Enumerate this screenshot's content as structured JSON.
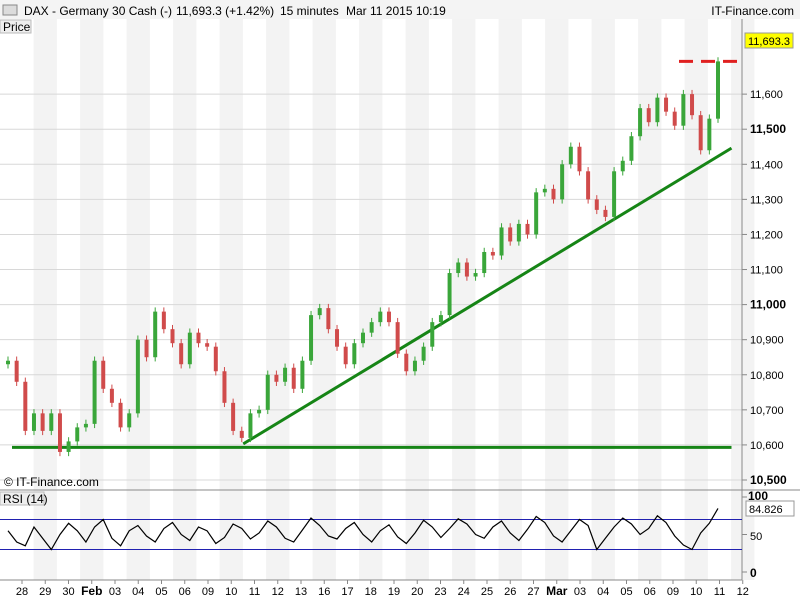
{
  "header": {
    "title": "DAX - Germany 30 Cash (-)",
    "last_price": "11,693.3 (+1.42%)",
    "interval": "15 minutes",
    "timestamp": "Mar 11 2015 10:19",
    "brand": "IT-Finance.com"
  },
  "main_panel": {
    "tab_label": "Price",
    "copyright": "© IT-Finance.com",
    "current_value_label": "11,693.3"
  },
  "rsi_panel": {
    "label": "RSI (14)",
    "value_label": "84.826",
    "axis_labels": [
      "100",
      "50",
      "0"
    ]
  },
  "colors": {
    "up_candle": "#3aa63a",
    "down_candle": "#d04b4b",
    "trendline": "#168516",
    "target_line": "#e02020",
    "rsi_band": "#2020b0",
    "weekend_band": "#e9e9e9"
  },
  "chart_data": [
    {
      "type": "line",
      "subtype": "candlestick",
      "title": "DAX - Germany 30 Cash (-)",
      "ylabel": "Price",
      "ylim": [
        10500,
        11760
      ],
      "y_ticks": [
        10500,
        10600,
        10700,
        10800,
        10900,
        11000,
        11100,
        11200,
        11300,
        11400,
        11500,
        11600
      ],
      "y_tick_labels": [
        "10,500",
        "10,600",
        "10,700",
        "10,800",
        "10,900",
        "11,000",
        "11,100",
        "11,200",
        "11,300",
        "11,400",
        "11,500",
        "11,600"
      ],
      "y_bold_ticks": [
        10500,
        11000,
        11500
      ],
      "x_tick_labels": [
        "28",
        "29",
        "30",
        "Feb",
        "03",
        "04",
        "05",
        "06",
        "09",
        "10",
        "11",
        "12",
        "13",
        "16",
        "17",
        "18",
        "19",
        "20",
        "23",
        "24",
        "25",
        "26",
        "27",
        "Mar",
        "03",
        "04",
        "05",
        "06",
        "09",
        "10",
        "11",
        "12"
      ],
      "x_bold_labels": [
        "Feb",
        "Mar"
      ],
      "series": [
        {
          "values": [
            10840,
            10780,
            10640,
            10690,
            10640,
            10690,
            10580,
            10610,
            10650,
            10660,
            10840,
            10760,
            10720,
            10650,
            10690,
            10900,
            10850,
            10980,
            10930,
            10890,
            10830,
            10920,
            10890,
            10880,
            10810,
            10720,
            10640,
            10620,
            10690,
            10700,
            10800,
            10780,
            10820,
            10760,
            10840,
            10970,
            10990,
            10930,
            10880,
            10830,
            10890,
            10920,
            10950,
            10980,
            10950,
            10860,
            10810,
            10840,
            10880,
            10950,
            10970,
            11090,
            11120,
            11080,
            11090,
            11150,
            11140,
            11220,
            11180,
            11230,
            11200,
            11320,
            11330,
            11300,
            11400,
            11450,
            11380,
            11300,
            11270,
            11250,
            11380,
            11410,
            11480,
            11560,
            11520,
            11590,
            11550,
            11510,
            11600,
            11540,
            11440,
            11530,
            11693.3
          ]
        }
      ],
      "trendlines": [
        {
          "name": "support",
          "from": [
            "27",
            10593
          ],
          "to": [
            "11",
            10593
          ]
        },
        {
          "name": "rising",
          "from": [
            "10",
            10603
          ],
          "to": [
            "11",
            11446
          ]
        },
        {
          "name": "target",
          "style": "dashed",
          "from": [
            "10",
            11693.3
          ],
          "to": [
            "11",
            11693.3
          ]
        }
      ]
    },
    {
      "type": "line",
      "title": "RSI (14)",
      "ylim": [
        0,
        100
      ],
      "y_ticks": [
        0,
        50,
        100
      ],
      "bands": [
        30,
        70
      ],
      "series": [
        {
          "values": [
            55,
            40,
            35,
            60,
            45,
            30,
            50,
            65,
            55,
            40,
            60,
            70,
            45,
            35,
            55,
            62,
            48,
            40,
            58,
            66,
            50,
            42,
            60,
            55,
            38,
            46,
            64,
            58,
            44,
            52,
            68,
            60,
            45,
            40,
            56,
            72,
            62,
            48,
            44,
            58,
            66,
            50,
            40,
            55,
            63,
            47,
            38,
            52,
            69,
            60,
            46,
            58,
            71,
            64,
            50,
            45,
            60,
            68,
            52,
            42,
            57,
            74,
            66,
            48,
            40,
            55,
            70,
            62,
            30,
            45,
            60,
            72,
            64,
            50,
            58,
            75,
            66,
            48,
            36,
            30,
            52,
            65,
            84.826
          ]
        }
      ]
    }
  ]
}
